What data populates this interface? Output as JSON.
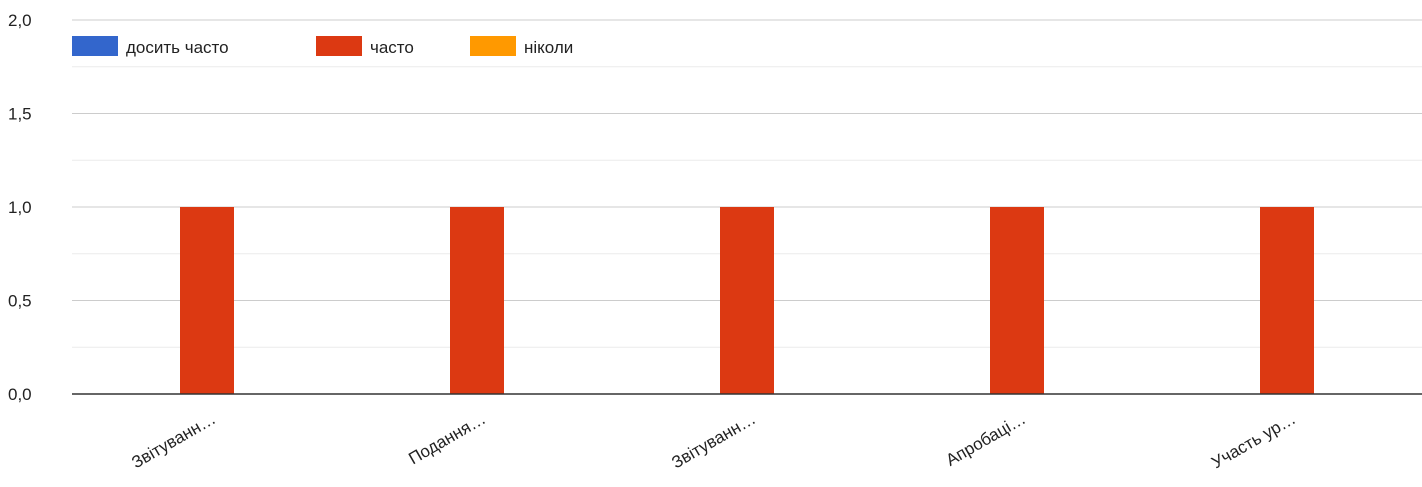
{
  "chart_data": {
    "type": "bar",
    "categories": [
      "Звітуванн…",
      "Подання…",
      "Звітуванн…",
      "Апробаці…",
      "Участь ур…"
    ],
    "series": [
      {
        "name": "досить часто",
        "color": "#3366cc",
        "values": [
          0,
          0,
          0,
          0,
          0
        ]
      },
      {
        "name": "часто",
        "color": "#dc3912",
        "values": [
          1,
          1,
          1,
          1,
          1
        ]
      },
      {
        "name": "ніколи",
        "color": "#ff9900",
        "values": [
          0,
          0,
          0,
          0,
          0
        ]
      }
    ],
    "ylim": [
      0,
      2
    ],
    "yticks": [
      "2,0",
      "1,5",
      "1,0",
      "0,5",
      "0,0"
    ],
    "legend_position": "top-left",
    "grid": true
  }
}
